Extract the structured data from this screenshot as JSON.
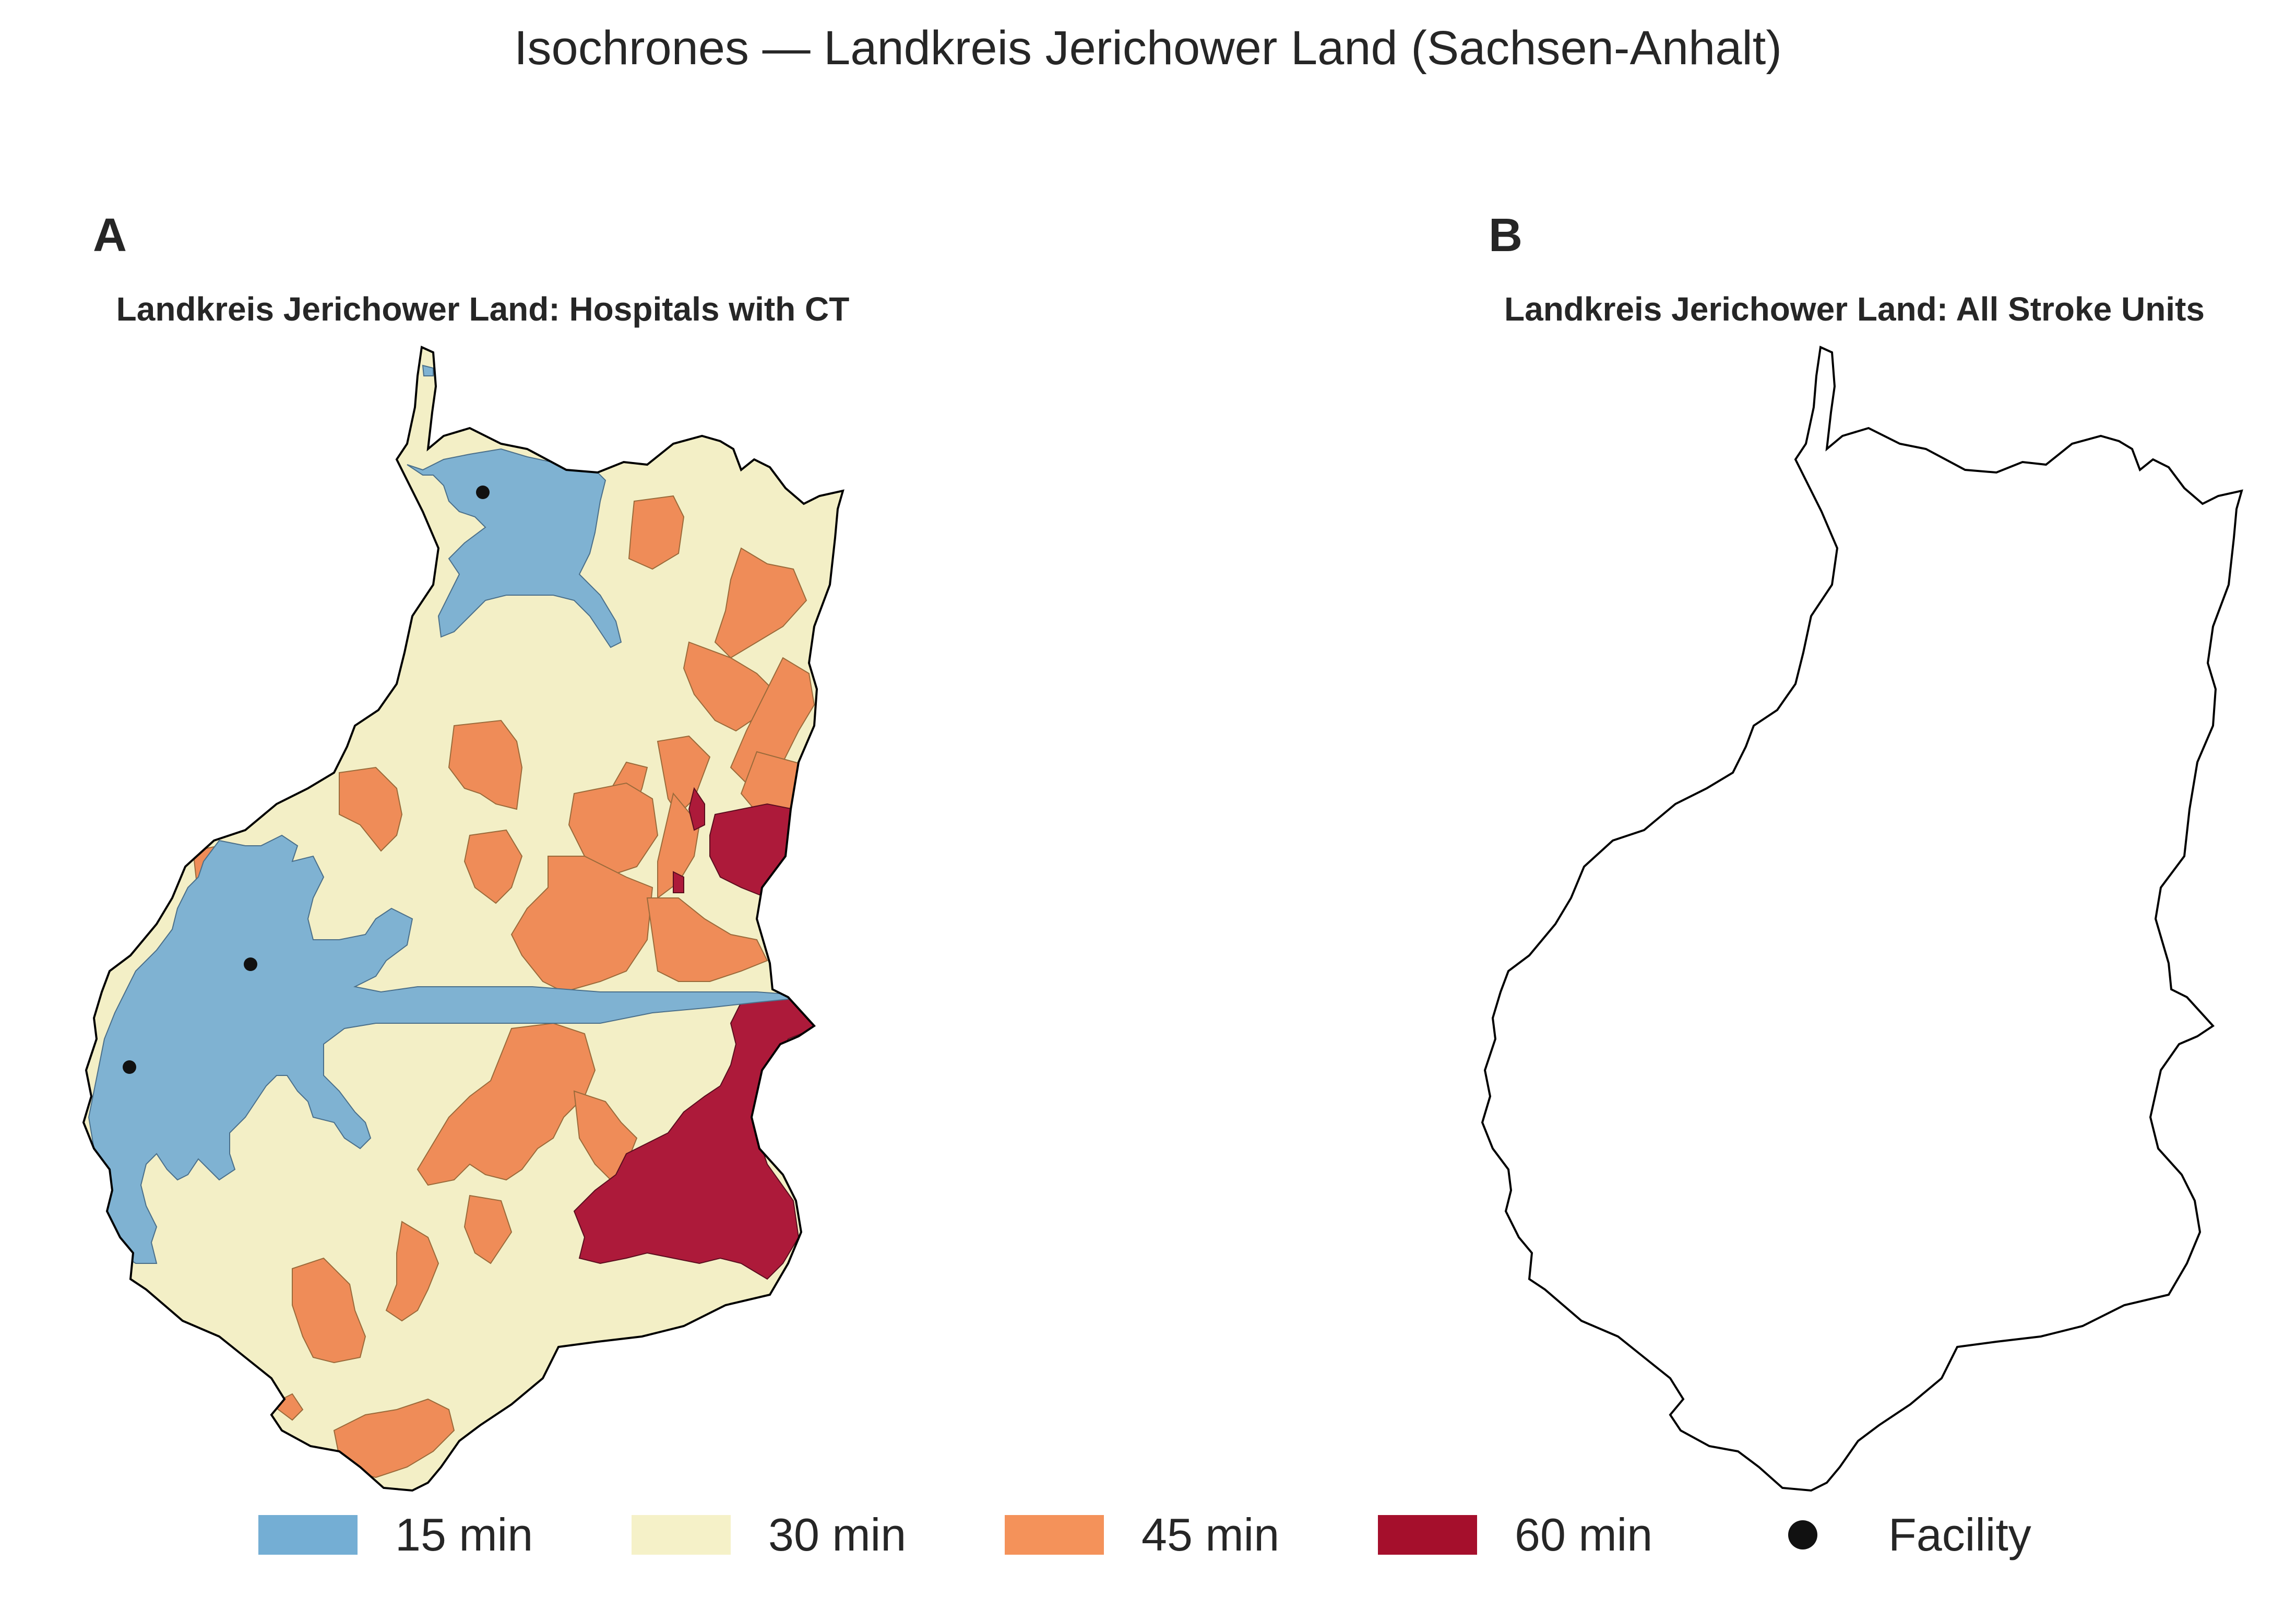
{
  "title": "Isochrones — Landkreis Jerichower Land (Sachsen-Anhalt)",
  "panels": [
    {
      "letter": "A",
      "title": "Landkreis Jerichower Land: Hospitals with CT",
      "facilities": 3
    },
    {
      "letter": "B",
      "title": "Landkreis Jerichower Land: All Stroke Units",
      "facilities": 0
    }
  ],
  "legend": [
    {
      "label": "15 min",
      "color": "#74aed4"
    },
    {
      "label": "30 min",
      "color": "#f5f1c8"
    },
    {
      "label": "45 min",
      "color": "#f4925a"
    },
    {
      "label": "60 min",
      "color": "#a50f2c"
    },
    {
      "label": "Facility",
      "icon": "filled-circle"
    }
  ],
  "colors": {
    "iso_15": "#7fb2d2",
    "iso_30": "#f3efc6",
    "iso_45": "#ef8c58",
    "iso_60": "#ad1a3a",
    "outline": "#000000",
    "facility": "#111111"
  }
}
